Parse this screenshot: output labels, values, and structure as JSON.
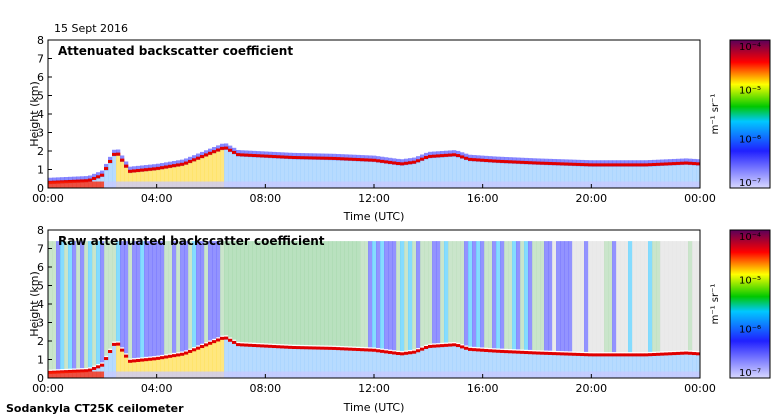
{
  "header": {
    "date": "15 Sept 2016"
  },
  "footer": {
    "instrument": "Sodankyla CT25K ceilometer"
  },
  "colors": {
    "low": "#c8c8ff",
    "mid_low": "#3232ff",
    "mid": "#00c800",
    "mid_high": "#ffff00",
    "high": "#ff0000",
    "top": "#640064",
    "background_noise": "#d2d2d2"
  },
  "chart_data": [
    {
      "type": "heatmap",
      "title": "Attenuated backscatter coefficient",
      "xlabel": "Time (UTC)",
      "ylabel": "Height (km)",
      "xlim": [
        "00:00",
        "24:00"
      ],
      "ylim": [
        0,
        8
      ],
      "x_ticks": [
        "00:00",
        "04:00",
        "08:00",
        "12:00",
        "16:00",
        "20:00",
        "00:00"
      ],
      "y_ticks": [
        "0",
        "1",
        "2",
        "3",
        "4",
        "5",
        "6",
        "7",
        "8"
      ],
      "colorbar": {
        "unit": "m⁻¹ sr⁻¹",
        "scale": "log",
        "ticks": [
          "10⁻⁷",
          "10⁻⁶",
          "10⁻⁵",
          "10⁻⁴"
        ]
      },
      "layer_top_km": [
        [
          0.0,
          0.3
        ],
        [
          1.5,
          0.4
        ],
        [
          2.0,
          0.7
        ],
        [
          2.5,
          2.0
        ],
        [
          3.0,
          0.9
        ],
        [
          4.0,
          1.05
        ],
        [
          5.0,
          1.3
        ],
        [
          6.0,
          1.9
        ],
        [
          6.5,
          2.2
        ],
        [
          7.0,
          1.8
        ],
        [
          9.0,
          1.65
        ],
        [
          10.5,
          1.6
        ],
        [
          12.0,
          1.5
        ],
        [
          13.0,
          1.3
        ],
        [
          13.5,
          1.4
        ],
        [
          14.0,
          1.7
        ],
        [
          15.0,
          1.8
        ],
        [
          15.5,
          1.55
        ],
        [
          16.5,
          1.45
        ],
        [
          18.0,
          1.35
        ],
        [
          20.0,
          1.25
        ],
        [
          22.0,
          1.25
        ],
        [
          23.5,
          1.35
        ],
        [
          24.0,
          1.3
        ]
      ],
      "noise_top_km": 0
    },
    {
      "type": "heatmap",
      "title": "Raw attenuated backscatter coefficient",
      "xlabel": "Time (UTC)",
      "ylabel": "Height (km)",
      "xlim": [
        "00:00",
        "24:00"
      ],
      "ylim": [
        0,
        8
      ],
      "x_ticks": [
        "00:00",
        "04:00",
        "08:00",
        "12:00",
        "16:00",
        "20:00",
        "00:00"
      ],
      "y_ticks": [
        "0",
        "1",
        "2",
        "3",
        "4",
        "5",
        "6",
        "7",
        "8"
      ],
      "colorbar": {
        "unit": "m⁻¹ sr⁻¹",
        "scale": "log",
        "ticks": [
          "10⁻⁷",
          "10⁻⁶",
          "10⁻⁵",
          "10⁻⁴"
        ]
      },
      "layer_top_km": [
        [
          0.0,
          0.3
        ],
        [
          1.5,
          0.4
        ],
        [
          2.0,
          0.7
        ],
        [
          2.5,
          2.0
        ],
        [
          3.0,
          0.9
        ],
        [
          4.0,
          1.05
        ],
        [
          5.0,
          1.3
        ],
        [
          6.0,
          1.9
        ],
        [
          6.5,
          2.2
        ],
        [
          7.0,
          1.8
        ],
        [
          9.0,
          1.65
        ],
        [
          10.5,
          1.6
        ],
        [
          12.0,
          1.5
        ],
        [
          13.0,
          1.3
        ],
        [
          13.5,
          1.4
        ],
        [
          14.0,
          1.7
        ],
        [
          15.0,
          1.8
        ],
        [
          15.5,
          1.55
        ],
        [
          16.5,
          1.45
        ],
        [
          18.0,
          1.35
        ],
        [
          20.0,
          1.25
        ],
        [
          22.0,
          1.25
        ],
        [
          23.5,
          1.35
        ],
        [
          24.0,
          1.3
        ]
      ],
      "noise_top_km": 7.4
    }
  ]
}
